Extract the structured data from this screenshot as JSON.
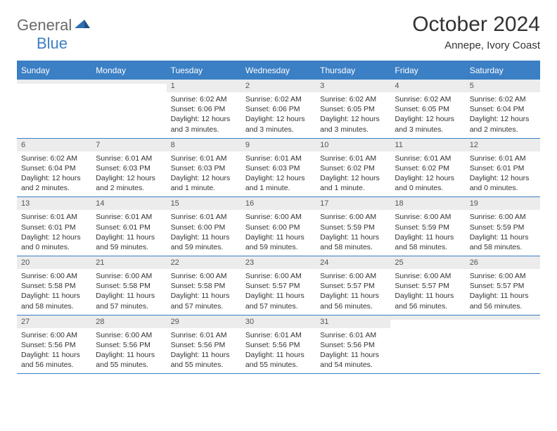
{
  "brand": {
    "part1": "General",
    "part2": "Blue"
  },
  "title": "October 2024",
  "location": "Annepe, Ivory Coast",
  "colors": {
    "header_bg": "#3b7fc4",
    "header_text": "#ffffff",
    "daynum_bg": "#ececec",
    "text": "#333333",
    "border": "#3b7fc4"
  },
  "dayNames": [
    "Sunday",
    "Monday",
    "Tuesday",
    "Wednesday",
    "Thursday",
    "Friday",
    "Saturday"
  ],
  "weeks": [
    [
      {
        "n": "",
        "sunrise": "",
        "sunset": "",
        "daylight": ""
      },
      {
        "n": "",
        "sunrise": "",
        "sunset": "",
        "daylight": ""
      },
      {
        "n": "1",
        "sunrise": "6:02 AM",
        "sunset": "6:06 PM",
        "daylight": "12 hours and 3 minutes."
      },
      {
        "n": "2",
        "sunrise": "6:02 AM",
        "sunset": "6:06 PM",
        "daylight": "12 hours and 3 minutes."
      },
      {
        "n": "3",
        "sunrise": "6:02 AM",
        "sunset": "6:05 PM",
        "daylight": "12 hours and 3 minutes."
      },
      {
        "n": "4",
        "sunrise": "6:02 AM",
        "sunset": "6:05 PM",
        "daylight": "12 hours and 3 minutes."
      },
      {
        "n": "5",
        "sunrise": "6:02 AM",
        "sunset": "6:04 PM",
        "daylight": "12 hours and 2 minutes."
      }
    ],
    [
      {
        "n": "6",
        "sunrise": "6:02 AM",
        "sunset": "6:04 PM",
        "daylight": "12 hours and 2 minutes."
      },
      {
        "n": "7",
        "sunrise": "6:01 AM",
        "sunset": "6:03 PM",
        "daylight": "12 hours and 2 minutes."
      },
      {
        "n": "8",
        "sunrise": "6:01 AM",
        "sunset": "6:03 PM",
        "daylight": "12 hours and 1 minute."
      },
      {
        "n": "9",
        "sunrise": "6:01 AM",
        "sunset": "6:03 PM",
        "daylight": "12 hours and 1 minute."
      },
      {
        "n": "10",
        "sunrise": "6:01 AM",
        "sunset": "6:02 PM",
        "daylight": "12 hours and 1 minute."
      },
      {
        "n": "11",
        "sunrise": "6:01 AM",
        "sunset": "6:02 PM",
        "daylight": "12 hours and 0 minutes."
      },
      {
        "n": "12",
        "sunrise": "6:01 AM",
        "sunset": "6:01 PM",
        "daylight": "12 hours and 0 minutes."
      }
    ],
    [
      {
        "n": "13",
        "sunrise": "6:01 AM",
        "sunset": "6:01 PM",
        "daylight": "12 hours and 0 minutes."
      },
      {
        "n": "14",
        "sunrise": "6:01 AM",
        "sunset": "6:01 PM",
        "daylight": "11 hours and 59 minutes."
      },
      {
        "n": "15",
        "sunrise": "6:01 AM",
        "sunset": "6:00 PM",
        "daylight": "11 hours and 59 minutes."
      },
      {
        "n": "16",
        "sunrise": "6:00 AM",
        "sunset": "6:00 PM",
        "daylight": "11 hours and 59 minutes."
      },
      {
        "n": "17",
        "sunrise": "6:00 AM",
        "sunset": "5:59 PM",
        "daylight": "11 hours and 58 minutes."
      },
      {
        "n": "18",
        "sunrise": "6:00 AM",
        "sunset": "5:59 PM",
        "daylight": "11 hours and 58 minutes."
      },
      {
        "n": "19",
        "sunrise": "6:00 AM",
        "sunset": "5:59 PM",
        "daylight": "11 hours and 58 minutes."
      }
    ],
    [
      {
        "n": "20",
        "sunrise": "6:00 AM",
        "sunset": "5:58 PM",
        "daylight": "11 hours and 58 minutes."
      },
      {
        "n": "21",
        "sunrise": "6:00 AM",
        "sunset": "5:58 PM",
        "daylight": "11 hours and 57 minutes."
      },
      {
        "n": "22",
        "sunrise": "6:00 AM",
        "sunset": "5:58 PM",
        "daylight": "11 hours and 57 minutes."
      },
      {
        "n": "23",
        "sunrise": "6:00 AM",
        "sunset": "5:57 PM",
        "daylight": "11 hours and 57 minutes."
      },
      {
        "n": "24",
        "sunrise": "6:00 AM",
        "sunset": "5:57 PM",
        "daylight": "11 hours and 56 minutes."
      },
      {
        "n": "25",
        "sunrise": "6:00 AM",
        "sunset": "5:57 PM",
        "daylight": "11 hours and 56 minutes."
      },
      {
        "n": "26",
        "sunrise": "6:00 AM",
        "sunset": "5:57 PM",
        "daylight": "11 hours and 56 minutes."
      }
    ],
    [
      {
        "n": "27",
        "sunrise": "6:00 AM",
        "sunset": "5:56 PM",
        "daylight": "11 hours and 56 minutes."
      },
      {
        "n": "28",
        "sunrise": "6:00 AM",
        "sunset": "5:56 PM",
        "daylight": "11 hours and 55 minutes."
      },
      {
        "n": "29",
        "sunrise": "6:01 AM",
        "sunset": "5:56 PM",
        "daylight": "11 hours and 55 minutes."
      },
      {
        "n": "30",
        "sunrise": "6:01 AM",
        "sunset": "5:56 PM",
        "daylight": "11 hours and 55 minutes."
      },
      {
        "n": "31",
        "sunrise": "6:01 AM",
        "sunset": "5:56 PM",
        "daylight": "11 hours and 54 minutes."
      },
      {
        "n": "",
        "sunrise": "",
        "sunset": "",
        "daylight": ""
      },
      {
        "n": "",
        "sunrise": "",
        "sunset": "",
        "daylight": ""
      }
    ]
  ],
  "labels": {
    "sunrise": "Sunrise:",
    "sunset": "Sunset:",
    "daylight": "Daylight:"
  }
}
